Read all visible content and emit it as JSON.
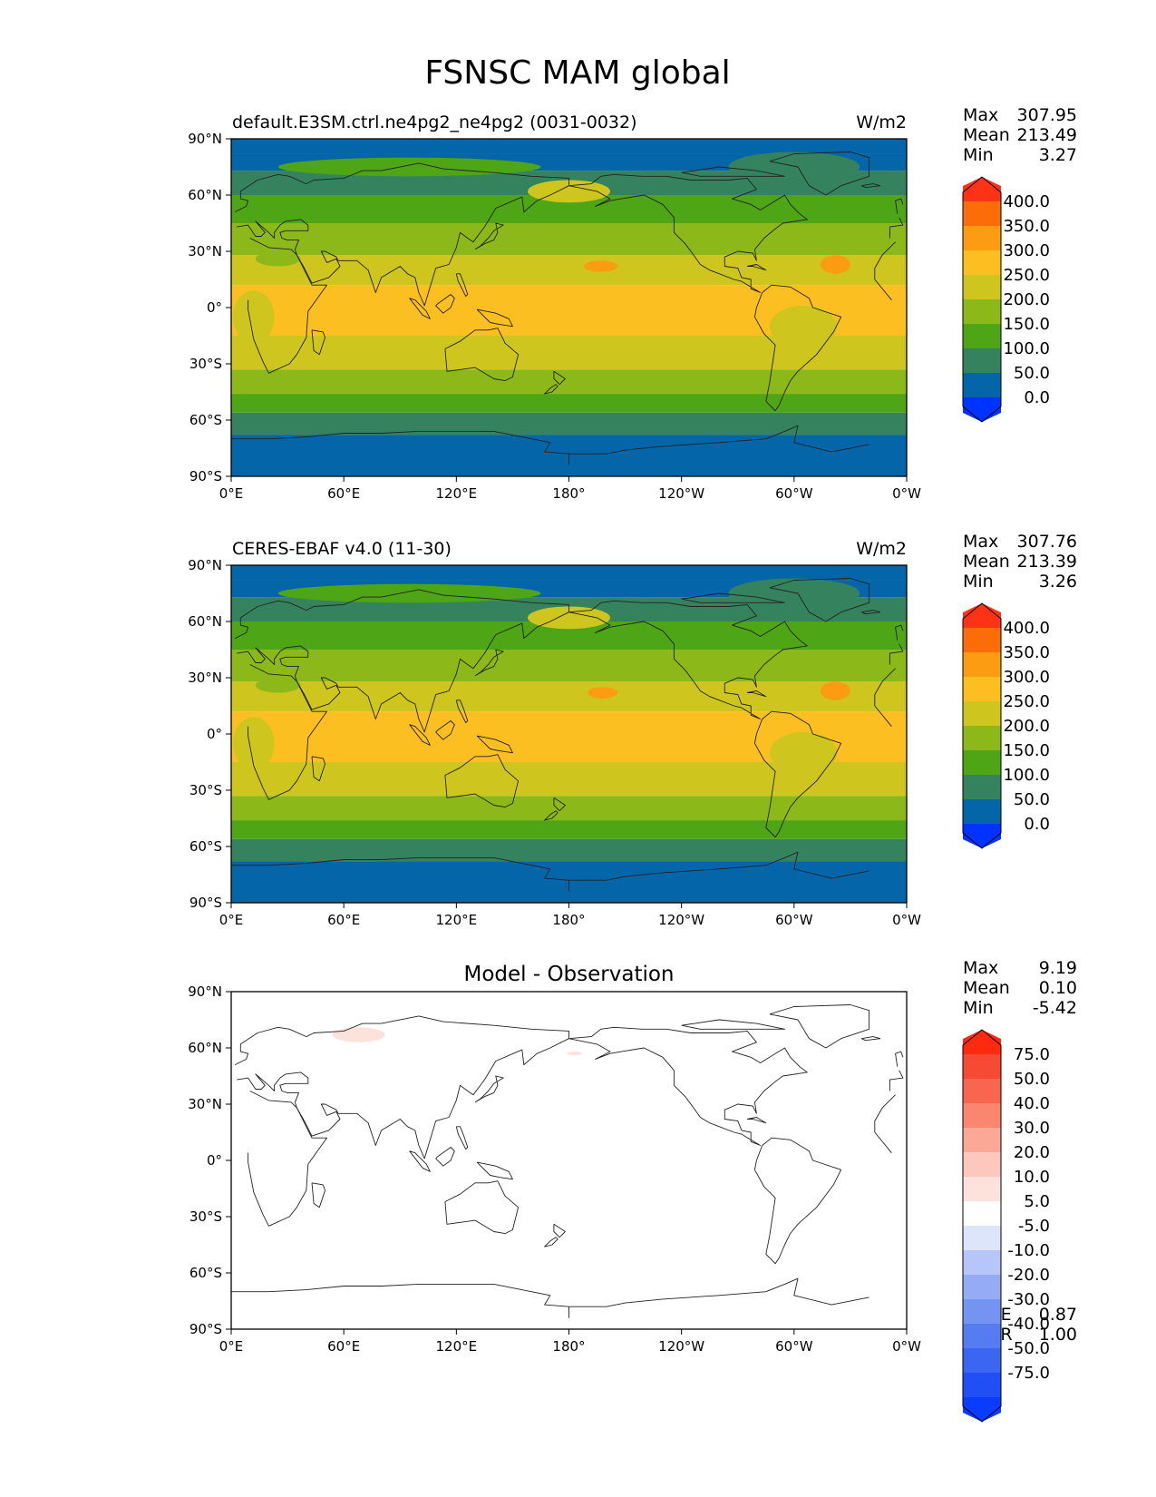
{
  "figure": {
    "title": "FSNSC MAM global",
    "x_ticks": [
      "0°E",
      "60°E",
      "120°E",
      "180°",
      "120°W",
      "60°W",
      "0°W"
    ],
    "y_ticks": [
      "90°N",
      "60°N",
      "30°N",
      "0°",
      "30°S",
      "60°S",
      "90°S"
    ]
  },
  "panels": [
    {
      "id": "test",
      "title_left": "default.E3SM.ctrl.ne4pg2_ne4pg2 (0031-0032)",
      "title_center": "",
      "units": "W/m2",
      "stats": [
        {
          "label": "Max",
          "value": "307.95"
        },
        {
          "label": "Mean",
          "value": "213.49"
        },
        {
          "label": "Min",
          "value": "3.27"
        }
      ],
      "extra_stats": [],
      "colorbar": {
        "labels": [
          "400.0",
          "350.0",
          "300.0",
          "250.0",
          "200.0",
          "150.0",
          "100.0",
          "50.0",
          "0.0"
        ],
        "colors": [
          "#0033ff",
          "#0466a8",
          "#34835e",
          "#4ea516",
          "#8db81a",
          "#cec51e",
          "#fbbf22",
          "#fb9c13",
          "#fc6d09",
          "#fe3214"
        ]
      }
    },
    {
      "id": "reference",
      "title_left": "CERES-EBAF v4.0 (11-30)",
      "title_center": "",
      "units": "W/m2",
      "stats": [
        {
          "label": "Max",
          "value": "307.76"
        },
        {
          "label": "Mean",
          "value": "213.39"
        },
        {
          "label": "Min",
          "value": "3.26"
        }
      ],
      "extra_stats": [],
      "colorbar": {
        "labels": [
          "400.0",
          "350.0",
          "300.0",
          "250.0",
          "200.0",
          "150.0",
          "100.0",
          "50.0",
          "0.0"
        ],
        "colors": [
          "#0033ff",
          "#0466a8",
          "#34835e",
          "#4ea516",
          "#8db81a",
          "#cec51e",
          "#fbbf22",
          "#fb9c13",
          "#fc6d09",
          "#fe3214"
        ]
      }
    },
    {
      "id": "difference",
      "title_left": "",
      "title_center": "Model - Observation",
      "units": "",
      "stats": [
        {
          "label": "Max",
          "value": "9.19"
        },
        {
          "label": "Mean",
          "value": "0.10"
        },
        {
          "label": "Min",
          "value": "-5.42"
        }
      ],
      "extra_stats": [
        {
          "label": "RMSE",
          "value": "0.87"
        },
        {
          "label": "CORR",
          "value": "1.00"
        }
      ],
      "colorbar": {
        "labels": [
          "75.0",
          "50.0",
          "40.0",
          "30.0",
          "20.0",
          "10.0",
          "5.0",
          "-5.0",
          "-10.0",
          "-20.0",
          "-30.0",
          "-40.0",
          "-50.0",
          "-75.0"
        ],
        "colors": [
          "#0a3cff",
          "#2050f5",
          "#3a66f2",
          "#557cf0",
          "#7594f2",
          "#95acf4",
          "#b6c6f8",
          "#dde5fb",
          "#ffffff",
          "#fde2dc",
          "#fcc8bd",
          "#fca896",
          "#fb8670",
          "#f96650",
          "#f74a35",
          "#fe2a10"
        ]
      }
    }
  ],
  "bands_lat": [
    -90,
    -68,
    -56,
    -46,
    -33,
    -15,
    12,
    28,
    45,
    60,
    73,
    82,
    90
  ],
  "fields": {
    "test": {
      "bands_class": [
        1,
        2,
        3,
        4,
        5,
        6,
        5,
        4,
        3,
        2,
        1,
        1
      ],
      "blobs": [
        {
          "cls": 7,
          "lon": 197,
          "lat": 22,
          "rx": 9,
          "ry": 3
        },
        {
          "cls": 7,
          "lon": 322,
          "lat": 23,
          "rx": 8,
          "ry": 5
        },
        {
          "cls": 5,
          "lon": 12,
          "lat": -5,
          "rx": 11,
          "ry": 14
        },
        {
          "cls": 5,
          "lon": 305,
          "lat": -10,
          "rx": 18,
          "ry": 11
        },
        {
          "cls": 4,
          "lon": 25,
          "lat": 26,
          "rx": 12,
          "ry": 4
        },
        {
          "cls": 5,
          "lon": 180,
          "lat": 62,
          "rx": 22,
          "ry": 6
        },
        {
          "cls": 3,
          "lon": 95,
          "lat": 75,
          "rx": 70,
          "ry": 5
        },
        {
          "cls": 2,
          "lon": 300,
          "lat": 75,
          "rx": 35,
          "ry": 8
        }
      ]
    },
    "reference": {
      "bands_class": [
        1,
        2,
        3,
        4,
        5,
        6,
        5,
        4,
        3,
        2,
        1,
        1
      ],
      "blobs": [
        {
          "cls": 7,
          "lon": 198,
          "lat": 22,
          "rx": 8,
          "ry": 3
        },
        {
          "cls": 7,
          "lon": 322,
          "lat": 23,
          "rx": 8,
          "ry": 5
        },
        {
          "cls": 5,
          "lon": 12,
          "lat": -5,
          "rx": 11,
          "ry": 14
        },
        {
          "cls": 5,
          "lon": 305,
          "lat": -10,
          "rx": 18,
          "ry": 11
        },
        {
          "cls": 4,
          "lon": 25,
          "lat": 26,
          "rx": 12,
          "ry": 4
        },
        {
          "cls": 5,
          "lon": 180,
          "lat": 62,
          "rx": 22,
          "ry": 6
        },
        {
          "cls": 3,
          "lon": 95,
          "lat": 75,
          "rx": 70,
          "ry": 5
        },
        {
          "cls": 2,
          "lon": 300,
          "lat": 75,
          "rx": 35,
          "ry": 8
        }
      ]
    },
    "difference": {
      "bands_class": [
        8,
        8,
        8,
        8,
        8,
        8,
        8,
        8,
        8,
        8,
        8,
        8
      ],
      "blobs": [
        {
          "cls": 9,
          "lon": 68,
          "lat": 67,
          "rx": 14,
          "ry": 4
        },
        {
          "cls": 9,
          "lon": 183,
          "lat": 57,
          "rx": 4,
          "ry": 1
        }
      ]
    }
  },
  "land_outlines": [
    [
      [
        -17,
        15
      ],
      [
        -17,
        21
      ],
      [
        -13,
        28
      ],
      [
        -6,
        35
      ],
      [
        10,
        37
      ],
      [
        20,
        32
      ],
      [
        32,
        31
      ],
      [
        35,
        28
      ],
      [
        43,
        12
      ],
      [
        51,
        12
      ],
      [
        41,
        -2
      ],
      [
        40,
        -16
      ],
      [
        35,
        -25
      ],
      [
        31,
        -30
      ],
      [
        20,
        -35
      ],
      [
        17,
        -29
      ],
      [
        12,
        -17
      ],
      [
        9,
        -1
      ],
      [
        9,
        4
      ],
      [
        -8,
        4
      ],
      [
        -17,
        15
      ]
    ],
    [
      [
        -9,
        37
      ],
      [
        -9,
        43
      ],
      [
        -2,
        44
      ],
      [
        -4,
        48
      ],
      [
        2,
        51
      ],
      [
        8,
        54
      ],
      [
        9,
        57
      ],
      [
        5,
        58
      ],
      [
        5,
        62
      ],
      [
        14,
        68
      ],
      [
        25,
        71
      ],
      [
        31,
        70
      ],
      [
        40,
        66
      ],
      [
        44,
        68
      ],
      [
        60,
        69
      ],
      [
        70,
        73
      ],
      [
        80,
        73
      ],
      [
        100,
        77
      ],
      [
        113,
        74
      ],
      [
        140,
        72
      ],
      [
        160,
        70
      ],
      [
        180,
        69
      ],
      [
        180,
        65
      ],
      [
        170,
        60
      ],
      [
        163,
        57
      ],
      [
        156,
        51
      ],
      [
        155,
        59
      ],
      [
        141,
        53
      ],
      [
        135,
        43
      ],
      [
        129,
        35
      ],
      [
        126,
        37
      ],
      [
        122,
        40
      ],
      [
        120,
        32
      ],
      [
        116,
        23
      ],
      [
        109,
        21
      ],
      [
        106,
        11
      ],
      [
        103,
        1
      ],
      [
        100,
        8
      ],
      [
        98,
        16
      ],
      [
        94,
        18
      ],
      [
        90,
        22
      ],
      [
        80,
        16
      ],
      [
        77,
        8
      ],
      [
        73,
        20
      ],
      [
        67,
        25
      ],
      [
        57,
        25
      ],
      [
        56,
        27
      ],
      [
        50,
        30
      ],
      [
        48,
        30
      ],
      [
        51,
        24
      ],
      [
        56,
        26
      ],
      [
        58,
        22
      ],
      [
        52,
        16
      ],
      [
        43,
        13
      ],
      [
        39,
        21
      ],
      [
        35,
        28
      ],
      [
        34,
        31
      ],
      [
        36,
        36
      ],
      [
        30,
        36
      ],
      [
        27,
        37
      ],
      [
        26,
        40
      ],
      [
        29,
        41
      ],
      [
        41,
        41
      ],
      [
        41,
        44
      ],
      [
        37,
        47
      ],
      [
        29,
        46
      ],
      [
        26,
        44
      ],
      [
        23,
        40
      ],
      [
        23,
        37
      ],
      [
        20,
        40
      ],
      [
        13,
        46
      ],
      [
        18,
        40
      ],
      [
        16,
        38
      ],
      [
        13,
        38
      ],
      [
        9,
        44
      ],
      [
        3,
        43
      ],
      [
        -9,
        37
      ]
    ],
    [
      [
        -180,
        65
      ],
      [
        -168,
        66
      ],
      [
        -163,
        70
      ],
      [
        -156,
        71
      ],
      [
        -141,
        70
      ],
      [
        -128,
        70
      ],
      [
        -115,
        68
      ],
      [
        -95,
        68
      ],
      [
        -85,
        69
      ],
      [
        -80,
        63
      ],
      [
        -93,
        58
      ],
      [
        -83,
        55
      ],
      [
        -78,
        52
      ],
      [
        -65,
        60
      ],
      [
        -62,
        55
      ],
      [
        -57,
        50
      ],
      [
        -53,
        47
      ],
      [
        -66,
        45
      ],
      [
        -70,
        42
      ],
      [
        -76,
        37
      ],
      [
        -81,
        31
      ],
      [
        -80,
        25
      ],
      [
        -82,
        29
      ],
      [
        -90,
        30
      ],
      [
        -97,
        27
      ],
      [
        -97,
        22
      ],
      [
        -90,
        21
      ],
      [
        -88,
        16
      ],
      [
        -83,
        15
      ],
      [
        -83,
        10
      ],
      [
        -78,
        8
      ],
      [
        -88,
        14
      ],
      [
        -92,
        15
      ],
      [
        -105,
        20
      ],
      [
        -110,
        23
      ],
      [
        -115,
        30
      ],
      [
        -118,
        34
      ],
      [
        -124,
        40
      ],
      [
        -124,
        48
      ],
      [
        -130,
        55
      ],
      [
        -140,
        60
      ],
      [
        -152,
        58
      ],
      [
        -158,
        57
      ],
      [
        -166,
        54
      ],
      [
        -158,
        58
      ],
      [
        -165,
        62
      ],
      [
        -180,
        65
      ]
    ],
    [
      [
        -77,
        8
      ],
      [
        -72,
        12
      ],
      [
        -62,
        11
      ],
      [
        -52,
        5
      ],
      [
        -50,
        0
      ],
      [
        -35,
        -5
      ],
      [
        -39,
        -13
      ],
      [
        -48,
        -25
      ],
      [
        -58,
        -34
      ],
      [
        -62,
        -39
      ],
      [
        -65,
        -45
      ],
      [
        -68,
        -52
      ],
      [
        -70,
        -55
      ],
      [
        -75,
        -50
      ],
      [
        -73,
        -40
      ],
      [
        -70,
        -20
      ],
      [
        -76,
        -14
      ],
      [
        -81,
        -5
      ],
      [
        -80,
        0
      ],
      [
        -77,
        8
      ]
    ],
    [
      [
        114,
        -22
      ],
      [
        122,
        -18
      ],
      [
        130,
        -12
      ],
      [
        137,
        -12
      ],
      [
        142,
        -11
      ],
      [
        146,
        -19
      ],
      [
        153,
        -25
      ],
      [
        150,
        -37
      ],
      [
        146,
        -39
      ],
      [
        140,
        -38
      ],
      [
        135,
        -35
      ],
      [
        130,
        -32
      ],
      [
        115,
        -34
      ],
      [
        114,
        -22
      ]
    ],
    [
      [
        -180,
        -84
      ],
      [
        -180,
        -78
      ],
      [
        -160,
        -78
      ],
      [
        -150,
        -76
      ],
      [
        -130,
        -74
      ],
      [
        -100,
        -72
      ],
      [
        -75,
        -70
      ],
      [
        -65,
        -66
      ],
      [
        -58,
        -63
      ],
      [
        -60,
        -72
      ],
      [
        -40,
        -77
      ],
      [
        -20,
        -73
      ],
      [
        0,
        -70
      ],
      [
        20,
        -70
      ],
      [
        40,
        -69
      ],
      [
        60,
        -67
      ],
      [
        80,
        -67
      ],
      [
        100,
        -66
      ],
      [
        120,
        -66
      ],
      [
        140,
        -66
      ],
      [
        160,
        -70
      ],
      [
        170,
        -72
      ],
      [
        167,
        -77
      ],
      [
        180,
        -78
      ],
      [
        180,
        -84
      ],
      [
        -180,
        -84
      ]
    ],
    [
      [
        -73,
        78
      ],
      [
        -60,
        82
      ],
      [
        -30,
        83
      ],
      [
        -20,
        80
      ],
      [
        -20,
        70
      ],
      [
        -35,
        65
      ],
      [
        -43,
        60
      ],
      [
        -52,
        65
      ],
      [
        -58,
        75
      ],
      [
        -73,
        78
      ]
    ],
    [
      [
        -5,
        50
      ],
      [
        1,
        51
      ],
      [
        -2,
        55
      ],
      [
        -3,
        58
      ],
      [
        -6,
        57
      ],
      [
        -5,
        50
      ]
    ],
    [
      [
        130,
        31
      ],
      [
        135,
        34
      ],
      [
        140,
        36
      ],
      [
        142,
        40
      ],
      [
        141,
        45
      ],
      [
        145,
        44
      ],
      [
        140,
        41
      ],
      [
        137,
        37
      ],
      [
        133,
        33
      ],
      [
        130,
        31
      ]
    ],
    [
      [
        95,
        5
      ],
      [
        98,
        4
      ],
      [
        104,
        -2
      ],
      [
        106,
        -6
      ],
      [
        102,
        -4
      ],
      [
        95,
        5
      ]
    ],
    [
      [
        109,
        1
      ],
      [
        113,
        -3
      ],
      [
        117,
        0
      ],
      [
        119,
        5
      ],
      [
        117,
        7
      ],
      [
        110,
        2
      ],
      [
        109,
        1
      ]
    ],
    [
      [
        131,
        -1
      ],
      [
        141,
        -3
      ],
      [
        148,
        -6
      ],
      [
        150,
        -10
      ],
      [
        143,
        -9
      ],
      [
        138,
        -8
      ],
      [
        131,
        -1
      ]
    ],
    [
      [
        43,
        -12
      ],
      [
        49,
        -13
      ],
      [
        50,
        -16
      ],
      [
        47,
        -25
      ],
      [
        44,
        -23
      ],
      [
        43,
        -12
      ]
    ],
    [
      [
        172,
        -34
      ],
      [
        178,
        -38
      ],
      [
        175,
        -41
      ],
      [
        172,
        -38
      ],
      [
        172,
        -34
      ]
    ],
    [
      [
        173,
        -41
      ],
      [
        174,
        -42
      ],
      [
        171,
        -45
      ],
      [
        167,
        -46
      ],
      [
        170,
        -43
      ],
      [
        173,
        -41
      ]
    ],
    [
      [
        -14,
        65
      ],
      [
        -18,
        66
      ],
      [
        -24,
        65
      ],
      [
        -22,
        64
      ],
      [
        -14,
        65
      ]
    ],
    [
      [
        120,
        18
      ],
      [
        122,
        18
      ],
      [
        124,
        13
      ],
      [
        126,
        7
      ],
      [
        125,
        6
      ],
      [
        121,
        14
      ],
      [
        120,
        18
      ]
    ],
    [
      [
        -85,
        22
      ],
      [
        -80,
        23
      ],
      [
        -75,
        20
      ],
      [
        -82,
        22
      ],
      [
        -85,
        22
      ]
    ],
    [
      [
        -120,
        72
      ],
      [
        -100,
        75
      ],
      [
        -80,
        73
      ],
      [
        -65,
        70
      ],
      [
        -90,
        70
      ],
      [
        -110,
        70
      ],
      [
        -120,
        72
      ]
    ]
  ]
}
